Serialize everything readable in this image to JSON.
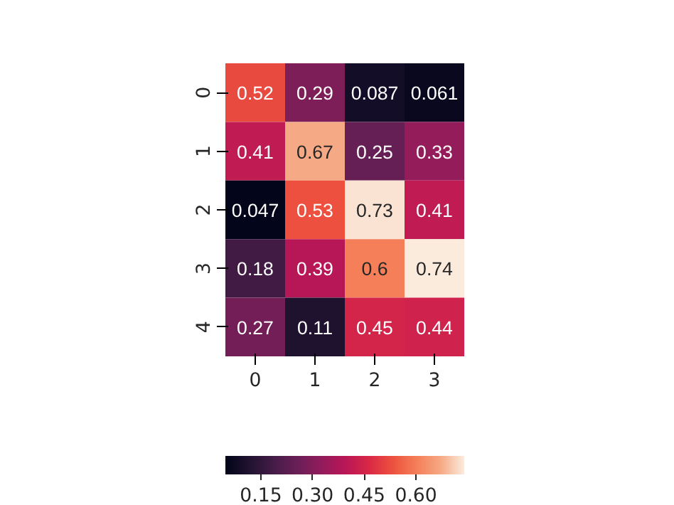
{
  "chart_data": {
    "type": "heatmap",
    "categories": [
      "0",
      "1",
      "2",
      "3"
    ],
    "y_categories": [
      "0",
      "1",
      "2",
      "3",
      "4"
    ],
    "cells": [
      [
        0.52,
        0.29,
        0.087,
        0.061
      ],
      [
        0.41,
        0.67,
        0.25,
        0.33
      ],
      [
        0.047,
        0.53,
        0.73,
        0.41
      ],
      [
        0.18,
        0.39,
        0.6,
        0.74
      ],
      [
        0.27,
        0.11,
        0.45,
        0.44
      ]
    ],
    "clim": [
      0.047,
      0.74
    ],
    "cticks": [
      {
        "value": 0.15,
        "label": "0.15"
      },
      {
        "value": 0.3,
        "label": "0.30"
      },
      {
        "value": 0.45,
        "label": "0.45"
      },
      {
        "value": 0.6,
        "label": "0.60"
      }
    ],
    "data_labels": true
  }
}
